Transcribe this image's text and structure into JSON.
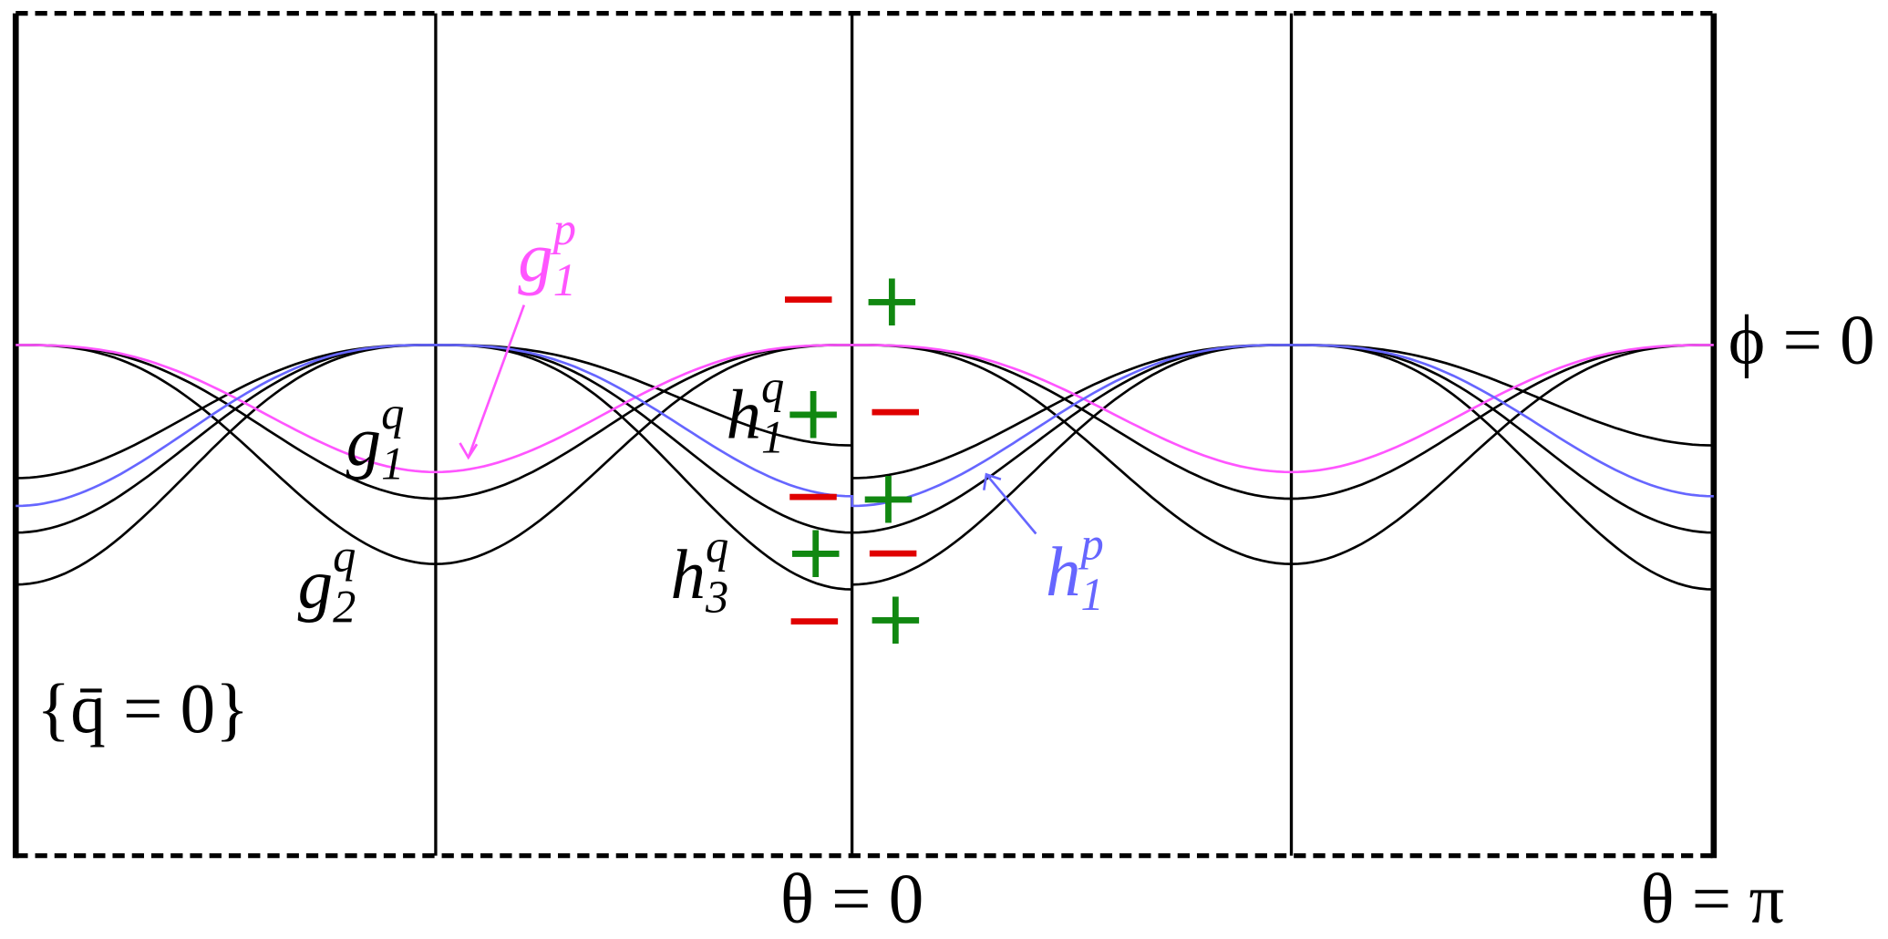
{
  "labels": {
    "g1p": {
      "base": "g",
      "sub": "1",
      "sup": "p"
    },
    "g1q": {
      "base": "g",
      "sub": "1",
      "sup": "q"
    },
    "g2q": {
      "base": "g",
      "sub": "2",
      "sup": "q"
    },
    "h1q": {
      "base": "h",
      "sub": "1",
      "sup": "q"
    },
    "h3q": {
      "base": "h",
      "sub": "3",
      "sup": "q"
    },
    "h1p": {
      "base": "h",
      "sub": "1",
      "sup": "p"
    }
  },
  "axes": {
    "phi": "ϕ = 0",
    "theta_zero": "θ = 0",
    "theta_pi": "θ = π"
  },
  "region": "{q̄ = 0}",
  "signs": [
    "−",
    "+",
    "+",
    "−",
    "−",
    "+",
    "+",
    "−",
    "−",
    "+"
  ]
}
